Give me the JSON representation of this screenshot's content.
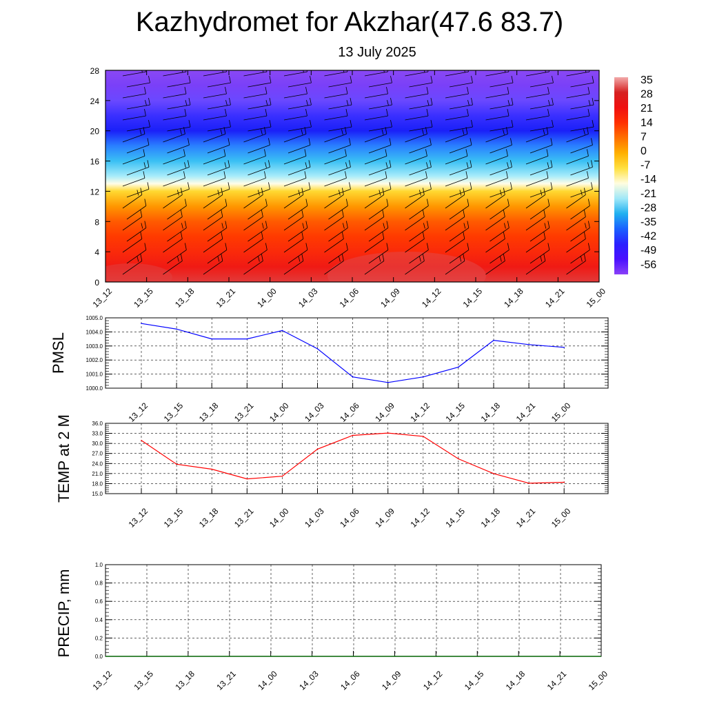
{
  "header": {
    "title": "Kazhydromet for Akzhar(47.6 83.7)",
    "subtitle": "13 July 2025"
  },
  "time_labels": [
    "13_12",
    "13_15",
    "13_18",
    "13_21",
    "14_00",
    "14_03",
    "14_06",
    "14_09",
    "14_12",
    "14_15",
    "14_18",
    "14_21",
    "15_00"
  ],
  "chart_data": [
    {
      "type": "heatmap",
      "name": "cross-section",
      "x": [
        "13_12",
        "13_15",
        "13_18",
        "13_21",
        "14_00",
        "14_03",
        "14_06",
        "14_09",
        "14_12",
        "14_15",
        "14_18",
        "14_21",
        "15_00"
      ],
      "y_ticks": [
        0,
        4,
        8,
        12,
        16,
        20,
        24,
        28
      ],
      "ylim": [
        0,
        28
      ],
      "colorbar": {
        "labels": [
          "35",
          "28",
          "21",
          "14",
          "7",
          "0",
          "-7",
          "-14",
          "-21",
          "-28",
          "-35",
          "-42",
          "-49",
          "-56"
        ],
        "colors": [
          "#f2aaaa",
          "#d62020",
          "#f01010",
          "#ff3000",
          "#ff7000",
          "#ffb000",
          "#ffe040",
          "#fffde0",
          "#a0e8f8",
          "#20b0f0",
          "#1a60ff",
          "#2a20ff",
          "#4a10ff",
          "#8a40f8"
        ]
      },
      "profile": {
        "levels": [
          0,
          2,
          4,
          6,
          8,
          10,
          12,
          13,
          14,
          16,
          18,
          20,
          22,
          24,
          26,
          28
        ],
        "colors": [
          "#e23a3a",
          "#f01a14",
          "#fa2a0a",
          "#ff3a00",
          "#ff5a00",
          "#ff9600",
          "#ffd830",
          "#fffde8",
          "#a8ecfa",
          "#3ac0f4",
          "#2a80ff",
          "#1a20f8",
          "#3a30ff",
          "#6a48ff",
          "#7a40f8",
          "#8a48f4"
        ]
      },
      "wind_barbs": true
    },
    {
      "type": "line",
      "name": "PMSL",
      "ylabel": "PMSL",
      "x": [
        "13_12",
        "13_15",
        "13_18",
        "13_21",
        "14_00",
        "14_03",
        "14_06",
        "14_09",
        "14_12",
        "14_15",
        "14_18",
        "14_21",
        "15_00"
      ],
      "values": [
        1004.6,
        1004.2,
        1003.5,
        1003.5,
        1004.1,
        1002.8,
        1000.8,
        1000.4,
        1000.8,
        1001.5,
        1003.4,
        1003.1,
        1002.9
      ],
      "y_ticks": [
        "1000.0",
        "1001.0",
        "1002.0",
        "1003.0",
        "1004.0",
        "1005.0"
      ],
      "ylim": [
        1000,
        1005
      ],
      "color": "#0000ff",
      "grid": true
    },
    {
      "type": "line",
      "name": "TEMP at 2 M",
      "ylabel": "TEMP at 2 M",
      "x": [
        "13_12",
        "13_15",
        "13_18",
        "13_21",
        "14_00",
        "14_03",
        "14_06",
        "14_09",
        "14_12",
        "14_15",
        "14_18",
        "14_21",
        "15_00"
      ],
      "values": [
        30.9,
        23.8,
        22.3,
        19.4,
        20.2,
        28.3,
        32.4,
        33.1,
        32.1,
        25.4,
        21.0,
        18.1,
        18.4
      ],
      "y_ticks": [
        "15.0",
        "18.0",
        "21.0",
        "24.0",
        "27.0",
        "30.0",
        "33.0",
        "36.0"
      ],
      "ylim": [
        15,
        36
      ],
      "color": "#ff0000",
      "grid": true
    },
    {
      "type": "line",
      "name": "PRECIP, mm",
      "ylabel": "PRECIP, mm",
      "x": [
        "13_12",
        "13_15",
        "13_18",
        "13_21",
        "14_00",
        "14_03",
        "14_06",
        "14_09",
        "14_12",
        "14_15",
        "14_18",
        "14_21",
        "15_00"
      ],
      "values": [
        0,
        0,
        0,
        0,
        0,
        0,
        0,
        0,
        0,
        0,
        0,
        0,
        0
      ],
      "y_ticks": [
        "0.0",
        "0.2",
        "0.4",
        "0.6",
        "0.8",
        "1.0"
      ],
      "ylim": [
        0,
        1
      ],
      "color": "#006400",
      "grid": true
    }
  ]
}
